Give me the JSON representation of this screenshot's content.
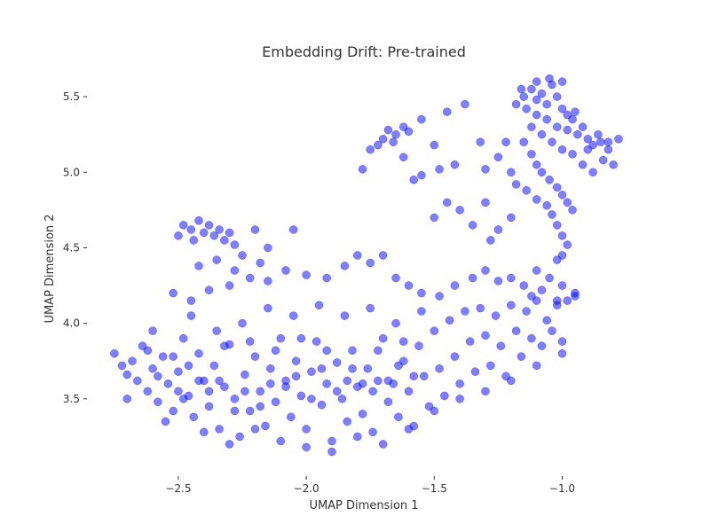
{
  "chart_data": {
    "type": "scatter",
    "title": "Embedding Drift: Pre-trained",
    "xlabel": "UMAP Dimension 1",
    "ylabel": "UMAP Dimension 2",
    "xlim": [
      -2.85,
      -0.7
    ],
    "ylim": [
      3.0,
      5.7
    ],
    "xticks": [
      -2.5,
      -2.0,
      -1.5,
      -1.0
    ],
    "xtick_labels": [
      "−2.5",
      "−2.0",
      "−1.5",
      "−1.0"
    ],
    "yticks": [
      3.5,
      4.0,
      4.5,
      5.0,
      5.5
    ],
    "ytick_labels": [
      "3.5",
      "4.0",
      "4.5",
      "5.0",
      "5.5"
    ],
    "grid": false,
    "legend": "none",
    "point_color": "#0000ff",
    "point_alpha": 0.5,
    "series": [
      {
        "points": [
          [
            -2.75,
            3.8
          ],
          [
            -2.72,
            3.72
          ],
          [
            -2.7,
            3.66
          ],
          [
            -2.68,
            3.75
          ],
          [
            -2.66,
            3.62
          ],
          [
            -2.64,
            3.85
          ],
          [
            -2.62,
            3.55
          ],
          [
            -2.6,
            3.7
          ],
          [
            -2.58,
            3.48
          ],
          [
            -2.56,
            3.78
          ],
          [
            -2.54,
            3.6
          ],
          [
            -2.52,
            3.42
          ],
          [
            -2.5,
            3.68
          ],
          [
            -2.48,
            3.9
          ],
          [
            -2.46,
            3.52
          ],
          [
            -2.44,
            3.38
          ],
          [
            -2.42,
            3.8
          ],
          [
            -2.4,
            3.62
          ],
          [
            -2.38,
            3.45
          ],
          [
            -2.36,
            3.72
          ],
          [
            -2.34,
            3.3
          ],
          [
            -2.32,
            3.58
          ],
          [
            -2.3,
            3.86
          ],
          [
            -2.28,
            3.5
          ],
          [
            -2.26,
            3.25
          ],
          [
            -2.24,
            3.66
          ],
          [
            -2.22,
            3.42
          ],
          [
            -2.2,
            3.78
          ],
          [
            -2.18,
            3.55
          ],
          [
            -2.16,
            3.32
          ],
          [
            -2.14,
            3.7
          ],
          [
            -2.12,
            3.48
          ],
          [
            -2.1,
            3.9
          ],
          [
            -2.08,
            3.62
          ],
          [
            -2.06,
            3.38
          ],
          [
            -2.04,
            3.75
          ],
          [
            -2.02,
            3.52
          ],
          [
            -2.0,
            3.3
          ],
          [
            -1.98,
            3.68
          ],
          [
            -1.96,
            3.88
          ],
          [
            -1.94,
            3.46
          ],
          [
            -1.92,
            3.6
          ],
          [
            -1.9,
            3.22
          ],
          [
            -1.88,
            3.74
          ],
          [
            -1.86,
            3.5
          ],
          [
            -1.84,
            3.35
          ],
          [
            -1.82,
            3.82
          ],
          [
            -1.8,
            3.58
          ],
          [
            -1.78,
            3.4
          ],
          [
            -1.76,
            3.7
          ],
          [
            -1.74,
            3.28
          ],
          [
            -1.72,
            3.62
          ],
          [
            -1.7,
            3.9
          ],
          [
            -1.68,
            3.48
          ],
          [
            -1.66,
            3.6
          ],
          [
            -1.64,
            3.38
          ],
          [
            -1.62,
            3.75
          ],
          [
            -1.6,
            3.55
          ],
          [
            -1.58,
            3.32
          ],
          [
            -1.56,
            3.85
          ],
          [
            -1.54,
            3.65
          ],
          [
            -1.52,
            3.45
          ],
          [
            -1.5,
            3.95
          ],
          [
            -1.48,
            3.7
          ],
          [
            -1.46,
            3.52
          ],
          [
            -1.44,
            4.02
          ],
          [
            -1.42,
            3.78
          ],
          [
            -1.4,
            3.6
          ],
          [
            -1.38,
            4.08
          ],
          [
            -1.36,
            3.88
          ],
          [
            -1.34,
            3.68
          ],
          [
            -1.32,
            4.1
          ],
          [
            -1.3,
            3.92
          ],
          [
            -1.28,
            3.72
          ],
          [
            -1.26,
            4.05
          ],
          [
            -1.24,
            3.85
          ],
          [
            -1.22,
            3.65
          ],
          [
            -1.2,
            4.12
          ],
          [
            -1.18,
            3.95
          ],
          [
            -1.16,
            3.78
          ],
          [
            -1.14,
            4.08
          ],
          [
            -1.12,
            3.9
          ],
          [
            -1.1,
            4.15
          ],
          [
            -1.08,
            3.85
          ],
          [
            -1.06,
            4.02
          ],
          [
            -1.04,
            3.95
          ],
          [
            -1.02,
            4.12
          ],
          [
            -1.0,
            3.88
          ],
          [
            -0.98,
            4.15
          ],
          [
            -0.95,
            4.18
          ],
          [
            -2.7,
            3.5
          ],
          [
            -2.6,
            3.95
          ],
          [
            -2.55,
            3.35
          ],
          [
            -2.45,
            4.05
          ],
          [
            -2.35,
            3.95
          ],
          [
            -2.25,
            4.0
          ],
          [
            -2.15,
            4.1
          ],
          [
            -2.05,
            4.05
          ],
          [
            -1.95,
            4.12
          ],
          [
            -1.85,
            4.05
          ],
          [
            -1.75,
            4.1
          ],
          [
            -1.65,
            4.0
          ],
          [
            -1.55,
            4.08
          ],
          [
            -2.5,
            3.55
          ],
          [
            -2.4,
            3.28
          ],
          [
            -2.3,
            3.2
          ],
          [
            -2.2,
            3.3
          ],
          [
            -2.1,
            3.22
          ],
          [
            -2.0,
            3.18
          ],
          [
            -1.9,
            3.15
          ],
          [
            -1.8,
            3.25
          ],
          [
            -1.7,
            3.2
          ],
          [
            -1.6,
            3.3
          ],
          [
            -1.5,
            3.42
          ],
          [
            -1.4,
            3.5
          ],
          [
            -1.3,
            3.55
          ],
          [
            -1.2,
            3.62
          ],
          [
            -1.1,
            3.72
          ],
          [
            -1.0,
            3.8
          ],
          [
            -2.62,
            3.82
          ],
          [
            -2.52,
            3.78
          ],
          [
            -2.42,
            3.62
          ],
          [
            -2.32,
            3.85
          ],
          [
            -2.22,
            3.88
          ],
          [
            -2.12,
            3.82
          ],
          [
            -2.02,
            3.9
          ],
          [
            -1.92,
            3.82
          ],
          [
            -1.82,
            3.7
          ],
          [
            -1.72,
            3.82
          ],
          [
            -1.62,
            3.88
          ],
          [
            -2.48,
            3.5
          ],
          [
            -2.38,
            3.55
          ],
          [
            -2.28,
            3.42
          ],
          [
            -2.18,
            3.45
          ],
          [
            -2.08,
            3.58
          ],
          [
            -1.98,
            3.5
          ],
          [
            -1.88,
            3.55
          ],
          [
            -1.78,
            3.6
          ],
          [
            -1.68,
            3.62
          ],
          [
            -1.58,
            3.65
          ],
          [
            -2.58,
            3.65
          ],
          [
            -2.46,
            3.72
          ],
          [
            -2.34,
            3.62
          ],
          [
            -2.24,
            3.55
          ],
          [
            -2.14,
            3.6
          ],
          [
            -2.04,
            3.65
          ],
          [
            -1.94,
            3.7
          ],
          [
            -1.84,
            3.62
          ],
          [
            -1.74,
            3.55
          ],
          [
            -1.64,
            3.72
          ],
          [
            -2.52,
            4.2
          ],
          [
            -2.45,
            4.15
          ],
          [
            -2.38,
            4.22
          ],
          [
            -2.3,
            4.25
          ],
          [
            -2.22,
            4.3
          ],
          [
            -2.15,
            4.28
          ],
          [
            -2.08,
            4.35
          ],
          [
            -2.0,
            4.32
          ],
          [
            -1.92,
            4.3
          ],
          [
            -1.85,
            4.38
          ],
          [
            -1.8,
            4.45
          ],
          [
            -1.75,
            4.4
          ],
          [
            -1.7,
            4.45
          ],
          [
            -1.65,
            4.3
          ],
          [
            -1.6,
            4.25
          ],
          [
            -1.55,
            4.2
          ],
          [
            -1.48,
            4.18
          ],
          [
            -1.42,
            4.25
          ],
          [
            -1.35,
            4.3
          ],
          [
            -1.3,
            4.35
          ],
          [
            -2.48,
            4.65
          ],
          [
            -2.45,
            4.62
          ],
          [
            -2.42,
            4.68
          ],
          [
            -2.4,
            4.6
          ],
          [
            -2.38,
            4.65
          ],
          [
            -2.36,
            4.58
          ],
          [
            -2.34,
            4.62
          ],
          [
            -2.32,
            4.55
          ],
          [
            -2.3,
            4.6
          ],
          [
            -2.28,
            4.52
          ],
          [
            -2.5,
            4.58
          ],
          [
            -2.44,
            4.55
          ],
          [
            -2.2,
            4.62
          ],
          [
            -2.05,
            4.62
          ],
          [
            -2.25,
            4.45
          ],
          [
            -2.15,
            4.5
          ],
          [
            -2.35,
            4.42
          ],
          [
            -2.42,
            4.38
          ],
          [
            -2.28,
            4.35
          ],
          [
            -2.18,
            4.4
          ],
          [
            -1.68,
            5.28
          ],
          [
            -1.65,
            5.25
          ],
          [
            -1.62,
            5.3
          ],
          [
            -1.7,
            5.22
          ],
          [
            -1.72,
            5.18
          ],
          [
            -1.66,
            5.2
          ],
          [
            -1.6,
            5.27
          ],
          [
            -1.75,
            5.15
          ],
          [
            -1.55,
            5.35
          ],
          [
            -1.45,
            5.4
          ],
          [
            -1.38,
            5.45
          ],
          [
            -1.32,
            5.2
          ],
          [
            -1.5,
            5.18
          ],
          [
            -1.48,
            5.02
          ],
          [
            -1.42,
            5.05
          ],
          [
            -1.55,
            4.98
          ],
          [
            -1.45,
            4.8
          ],
          [
            -1.4,
            4.75
          ],
          [
            -1.3,
            4.8
          ],
          [
            -1.35,
            4.65
          ],
          [
            -1.25,
            4.62
          ],
          [
            -1.2,
            4.7
          ],
          [
            -1.28,
            4.55
          ],
          [
            -1.5,
            4.7
          ],
          [
            -1.78,
            5.02
          ],
          [
            -1.62,
            5.1
          ],
          [
            -1.58,
            4.95
          ],
          [
            -1.22,
            5.2
          ],
          [
            -1.25,
            5.1
          ],
          [
            -1.3,
            5.02
          ],
          [
            -1.15,
            5.5
          ],
          [
            -1.12,
            5.55
          ],
          [
            -1.1,
            5.48
          ],
          [
            -1.08,
            5.52
          ],
          [
            -1.06,
            5.45
          ],
          [
            -1.04,
            5.58
          ],
          [
            -1.02,
            5.5
          ],
          [
            -1.0,
            5.42
          ],
          [
            -0.98,
            5.38
          ],
          [
            -0.96,
            5.35
          ],
          [
            -1.18,
            5.45
          ],
          [
            -1.14,
            5.42
          ],
          [
            -1.1,
            5.38
          ],
          [
            -1.06,
            5.35
          ],
          [
            -1.02,
            5.3
          ],
          [
            -0.98,
            5.28
          ],
          [
            -0.94,
            5.25
          ],
          [
            -0.9,
            5.22
          ],
          [
            -0.88,
            5.18
          ],
          [
            -0.85,
            5.2
          ],
          [
            -1.12,
            5.3
          ],
          [
            -1.08,
            5.25
          ],
          [
            -1.04,
            5.2
          ],
          [
            -1.0,
            5.15
          ],
          [
            -0.96,
            5.12
          ],
          [
            -0.92,
            5.3
          ],
          [
            -0.9,
            5.15
          ],
          [
            -0.86,
            5.25
          ],
          [
            -0.82,
            5.2
          ],
          [
            -0.78,
            5.22
          ],
          [
            -1.15,
            5.2
          ],
          [
            -1.12,
            5.12
          ],
          [
            -1.1,
            5.05
          ],
          [
            -1.08,
            5.0
          ],
          [
            -1.05,
            4.95
          ],
          [
            -1.02,
            4.9
          ],
          [
            -1.0,
            4.85
          ],
          [
            -0.98,
            4.8
          ],
          [
            -0.96,
            4.75
          ],
          [
            -1.2,
            5.0
          ],
          [
            -1.18,
            4.92
          ],
          [
            -1.14,
            4.88
          ],
          [
            -1.1,
            4.82
          ],
          [
            -1.06,
            4.78
          ],
          [
            -1.04,
            4.72
          ],
          [
            -1.02,
            4.65
          ],
          [
            -1.0,
            4.58
          ],
          [
            -0.98,
            4.52
          ],
          [
            -1.0,
            4.45
          ],
          [
            -1.02,
            4.42
          ],
          [
            -1.05,
            5.62
          ],
          [
            -1.0,
            5.6
          ],
          [
            -0.95,
            5.4
          ],
          [
            -0.92,
            5.05
          ],
          [
            -0.88,
            5.0
          ],
          [
            -0.84,
            5.08
          ],
          [
            -0.8,
            5.05
          ],
          [
            -0.82,
            5.15
          ],
          [
            -1.1,
            5.6
          ],
          [
            -1.16,
            5.55
          ],
          [
            -1.1,
            4.35
          ],
          [
            -1.05,
            4.3
          ],
          [
            -1.15,
            4.25
          ],
          [
            -1.2,
            4.3
          ],
          [
            -1.0,
            4.25
          ],
          [
            -0.95,
            4.2
          ],
          [
            -1.25,
            4.28
          ],
          [
            -1.08,
            4.22
          ],
          [
            -1.12,
            4.18
          ],
          [
            -1.02,
            4.15
          ]
        ]
      }
    ]
  }
}
